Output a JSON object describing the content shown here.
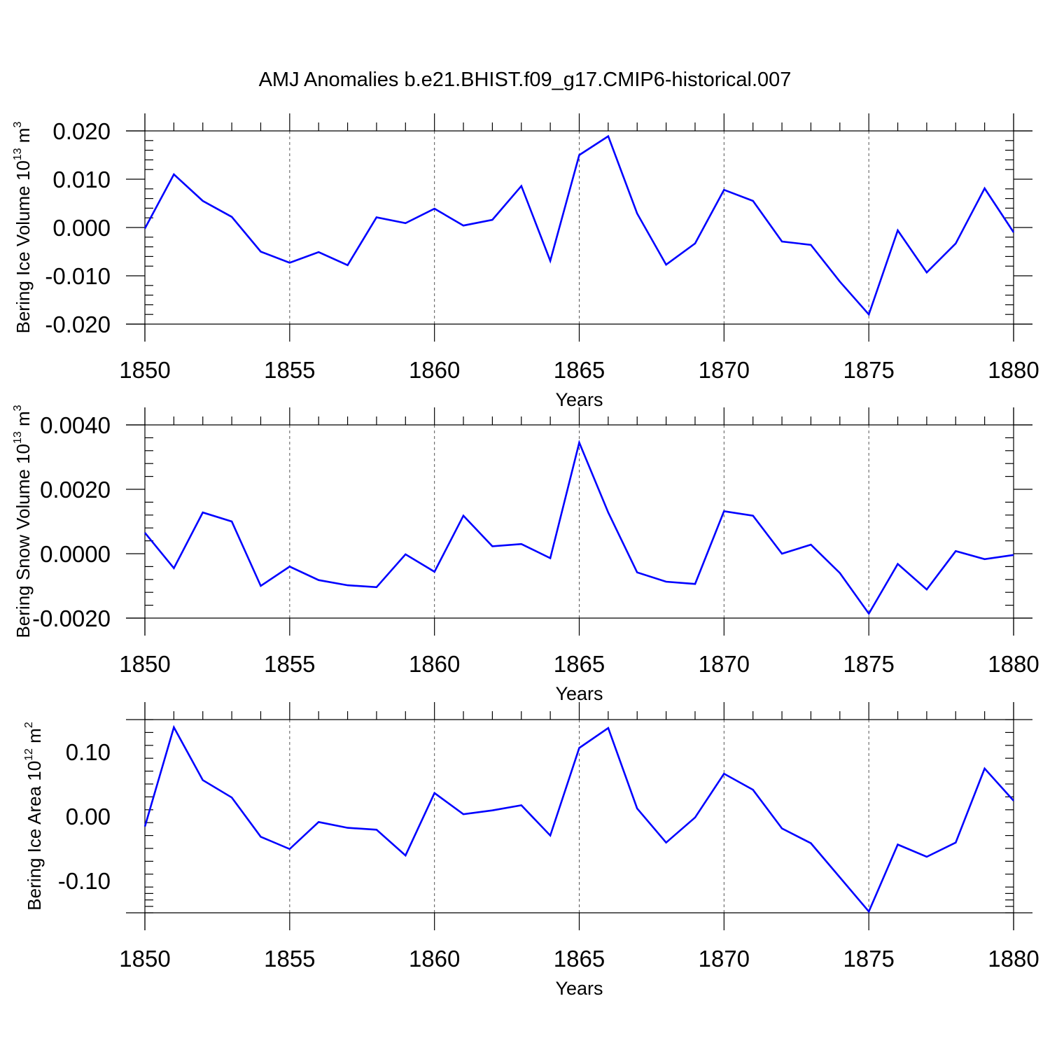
{
  "figure": {
    "title": "AMJ Anomalies b.e21.BHIST.f09_g17.CMIP6-historical.007",
    "line_color": "#0000ff"
  },
  "chart_data": [
    {
      "type": "line",
      "title": "",
      "xlabel": "Years",
      "ylabel": "Bering Ice Volume 10",
      "ylabel_superscript": "13",
      "ylabel_unit": " m",
      "ylabel_unit_superscript": "3",
      "xlim": [
        1850,
        1880
      ],
      "ylim": [
        -0.02,
        0.02
      ],
      "xticks": [
        1850,
        1855,
        1860,
        1865,
        1870,
        1875,
        1880
      ],
      "yticks": [
        -0.02,
        -0.01,
        0.0,
        0.01,
        0.02
      ],
      "ytick_labels": [
        "-0.020",
        "-0.010",
        "0.000",
        "0.010",
        "0.020"
      ],
      "series": [
        {
          "name": "Bering Ice Volume",
          "x": [
            1850,
            1851,
            1852,
            1853,
            1854,
            1855,
            1856,
            1857,
            1858,
            1859,
            1860,
            1861,
            1862,
            1863,
            1864,
            1865,
            1866,
            1867,
            1868,
            1869,
            1870,
            1871,
            1872,
            1873,
            1874,
            1875,
            1876,
            1877,
            1878,
            1879,
            1880
          ],
          "values": [
            -0.0002,
            0.011,
            0.0055,
            0.0022,
            -0.005,
            -0.0073,
            -0.0051,
            -0.0078,
            0.0021,
            0.0009,
            0.0039,
            0.0004,
            0.0016,
            0.0086,
            -0.0069,
            0.015,
            0.0189,
            0.0029,
            -0.0077,
            -0.0033,
            0.0078,
            0.0055,
            -0.0029,
            -0.0036,
            -0.0112,
            -0.018,
            -0.0006,
            -0.0093,
            -0.0033,
            0.0081,
            -0.001
          ]
        }
      ]
    },
    {
      "type": "line",
      "title": "",
      "xlabel": "Years",
      "ylabel": "Bering Snow Volume 10",
      "ylabel_superscript": "13",
      "ylabel_unit": " m",
      "ylabel_unit_superscript": "3",
      "xlim": [
        1850,
        1880
      ],
      "ylim": [
        -0.002,
        0.004
      ],
      "xticks": [
        1850,
        1855,
        1860,
        1865,
        1870,
        1875,
        1880
      ],
      "yticks": [
        -0.002,
        0.0,
        0.002,
        0.004
      ],
      "ytick_labels": [
        "-0.0020",
        "0.0000",
        "0.0020",
        "0.0040"
      ],
      "series": [
        {
          "name": "Bering Snow Volume",
          "x": [
            1850,
            1851,
            1852,
            1853,
            1854,
            1855,
            1856,
            1857,
            1858,
            1859,
            1860,
            1861,
            1862,
            1863,
            1864,
            1865,
            1866,
            1867,
            1868,
            1869,
            1870,
            1871,
            1872,
            1873,
            1874,
            1875,
            1876,
            1877,
            1878,
            1879,
            1880
          ],
          "values": [
            0.00065,
            -0.00045,
            0.00128,
            0.001,
            -0.001,
            -0.0004,
            -0.00082,
            -0.00098,
            -0.00104,
            -2e-05,
            -0.00056,
            0.00118,
            0.00023,
            0.0003,
            -0.00014,
            0.00345,
            0.00128,
            -0.00058,
            -0.00087,
            -0.00094,
            0.00132,
            0.00118,
            0.0,
            0.00028,
            -0.0006,
            -0.00186,
            -0.00032,
            -0.00111,
            8e-05,
            -0.00017,
            -4e-05
          ]
        }
      ]
    },
    {
      "type": "line",
      "title": "",
      "xlabel": "Years",
      "ylabel": "Bering Ice Area 10",
      "ylabel_superscript": "12",
      "ylabel_unit": " m",
      "ylabel_unit_superscript": "2",
      "xlim": [
        1850,
        1880
      ],
      "ylim": [
        -0.15,
        0.15
      ],
      "xticks": [
        1850,
        1855,
        1860,
        1865,
        1870,
        1875,
        1880
      ],
      "yticks": [
        -0.1,
        0.0,
        0.1
      ],
      "ytick_labels": [
        "-0.10",
        "0.00",
        "0.10"
      ],
      "series": [
        {
          "name": "Bering Ice Area",
          "x": [
            1850,
            1851,
            1852,
            1853,
            1854,
            1855,
            1856,
            1857,
            1858,
            1859,
            1860,
            1861,
            1862,
            1863,
            1864,
            1865,
            1866,
            1867,
            1868,
            1869,
            1870,
            1871,
            1872,
            1873,
            1874,
            1875,
            1876,
            1877,
            1878,
            1879,
            1880
          ],
          "values": [
            -0.016,
            0.138,
            0.056,
            0.029,
            -0.032,
            -0.051,
            -0.009,
            -0.018,
            -0.021,
            -0.061,
            0.036,
            0.003,
            0.009,
            0.017,
            -0.03,
            0.106,
            0.137,
            0.012,
            -0.041,
            -0.002,
            0.066,
            0.041,
            -0.019,
            -0.042,
            -0.095,
            -0.148,
            -0.044,
            -0.063,
            -0.041,
            0.074,
            0.024
          ]
        }
      ]
    }
  ]
}
